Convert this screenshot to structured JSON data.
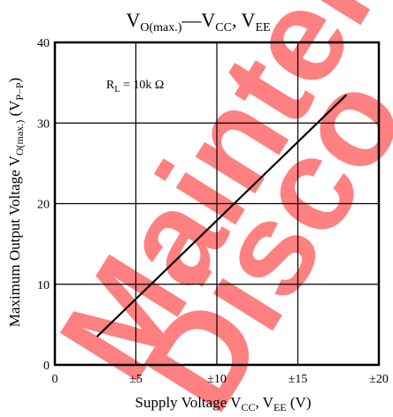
{
  "chart_data": {
    "type": "line",
    "title": {
      "main": "V",
      "sub1": "O(max.)",
      "dash": "—V",
      "sub2": "CC",
      "sep": ", V",
      "sub3": "EE"
    },
    "xlabel": {
      "main": "Supply Voltage  V",
      "sub1": "CC",
      "sep": ", V",
      "sub2": "EE",
      "unit": "  (V)"
    },
    "ylabel": {
      "main": "Maximum Output Voltage  V",
      "sub1": "O(max.)",
      "paren": "  (V",
      "sub2": "P−P",
      "close": ")"
    },
    "annotation": {
      "main": "R",
      "sub": "L",
      "rest": " = 10k Ω"
    },
    "xlim": [
      0,
      20
    ],
    "ylim": [
      0,
      40
    ],
    "x_ticks": [
      {
        "value": 0,
        "label": "0"
      },
      {
        "value": 5,
        "label": "±5"
      },
      {
        "value": 10,
        "label": "±10"
      },
      {
        "value": 15,
        "label": "±15"
      },
      {
        "value": 20,
        "label": "±20"
      }
    ],
    "y_ticks": [
      {
        "value": 0,
        "label": "0"
      },
      {
        "value": 10,
        "label": "10"
      },
      {
        "value": 20,
        "label": "20"
      },
      {
        "value": 30,
        "label": "30"
      },
      {
        "value": 40,
        "label": "40"
      }
    ],
    "grid": true,
    "series": [
      {
        "x": [
          2.6,
          18.0
        ],
        "y": [
          3.5,
          33.5
        ]
      }
    ],
    "line_color": "#000000",
    "watermark": {
      "text1": "Mainten",
      "text2": "Disco",
      "color": "#ff6b6b"
    }
  }
}
